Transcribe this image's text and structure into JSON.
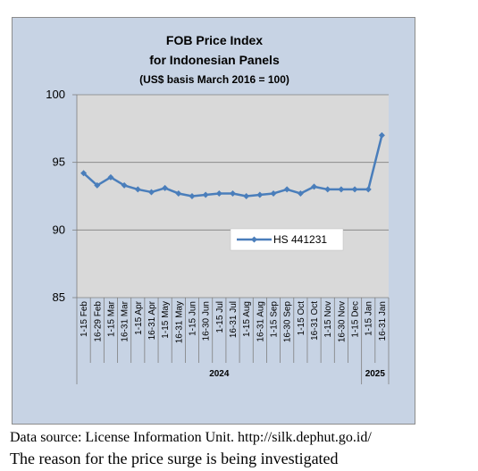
{
  "chart_data": {
    "type": "line",
    "title": [
      "FOB Price Index",
      "for Indonesian Panels",
      "(US$ basis March 2016 = 100)"
    ],
    "categories": [
      "1-15 Feb",
      "16-29 Feb",
      "1-15 Mar",
      "16-31 Mar",
      "1-15 Apr",
      "16-31 Apr",
      "1-15 May",
      "16-31 May",
      "1-15 Jun",
      "16-30 Jun",
      "1-15 Jul",
      "16-31 Jul",
      "1-15 Aug",
      "16-31 Aug",
      "1-15 Sep",
      "16-30 Sep",
      "1-15 Oct",
      "16-31 Oct",
      "1-15 Nov",
      "16-30 Nov",
      "1-15 Dec",
      "1-15 Jan",
      "16-31 Jan"
    ],
    "groups": [
      {
        "label": "2024",
        "count": 21
      },
      {
        "label": "2025",
        "count": 2
      }
    ],
    "series": [
      {
        "name": "HS 441231",
        "color": "#4a7ebb",
        "values": [
          94.2,
          93.3,
          93.9,
          93.3,
          93.0,
          92.8,
          93.1,
          92.7,
          92.5,
          92.6,
          92.7,
          92.7,
          92.5,
          92.6,
          92.7,
          93.0,
          92.7,
          93.2,
          93.0,
          93.0,
          93.0,
          93.0,
          97.0
        ]
      }
    ],
    "yticks": [
      "85",
      "90",
      "95",
      "100"
    ],
    "ylim": [
      85,
      100
    ],
    "grid": true,
    "legend": "inside-right",
    "plot_background": "#d9d9d9"
  },
  "source_note": "Data source: License Information Unit. http://silk.dephut.go.id/",
  "status_note": "The reason for the price surge is being investigated"
}
